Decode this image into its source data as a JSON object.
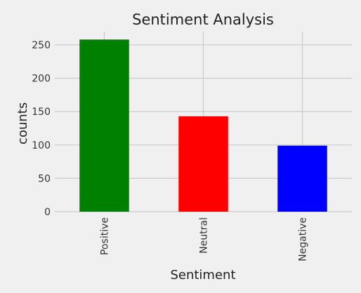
{
  "chart_data": {
    "type": "bar",
    "title": "Sentiment Analysis",
    "xlabel": "Sentiment",
    "ylabel": "counts",
    "categories": [
      "Positive",
      "Neutral",
      "Negative"
    ],
    "values": [
      258,
      143,
      99
    ],
    "colors": [
      "#008000",
      "#ff0000",
      "#0000ff"
    ],
    "ylim": [
      0,
      270
    ],
    "yticks": [
      0,
      50,
      100,
      150,
      200,
      250
    ],
    "grid": true,
    "background_color": "#f0f0f0",
    "grid_color": "#cbcbcb"
  }
}
